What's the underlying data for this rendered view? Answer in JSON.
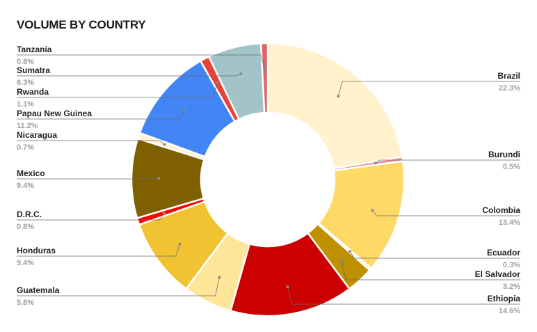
{
  "chart_data": {
    "type": "pie",
    "variant": "donut",
    "title": "VOLUME BY COUNTRY",
    "legend": "labels-outside",
    "slices": [
      {
        "name": "Brazil",
        "value": 22.3,
        "label": "22.3%",
        "color": "#FFF2CC",
        "side": "right"
      },
      {
        "name": "Burundi",
        "value": 0.5,
        "label": "0.5%",
        "color": "#E6949A",
        "side": "right"
      },
      {
        "name": "Colombia",
        "value": 13.4,
        "label": "13.4%",
        "color": "#FFD966",
        "side": "right"
      },
      {
        "name": "Ecuador",
        "value": 0.3,
        "label": "0.3%",
        "color": "#FFF2CC",
        "side": "right"
      },
      {
        "name": "El Salvador",
        "value": 3.2,
        "label": "3.2%",
        "color": "#BF9000",
        "side": "right"
      },
      {
        "name": "Ethiopia",
        "value": 14.6,
        "label": "14.6%",
        "color": "#CC0000",
        "side": "right"
      },
      {
        "name": "Guatemala",
        "value": 5.8,
        "label": "5.8%",
        "color": "#FFE599",
        "side": "left"
      },
      {
        "name": "Honduras",
        "value": 9.4,
        "label": "9.4%",
        "color": "#F1C232",
        "side": "left"
      },
      {
        "name": "D.R.C.",
        "value": 0.8,
        "label": "0.8%",
        "color": "#FF0000",
        "side": "left"
      },
      {
        "name": "Mexico",
        "value": 9.4,
        "label": "9.4%",
        "color": "#7F6000",
        "side": "left"
      },
      {
        "name": "Nicaragua",
        "value": 0.7,
        "label": "0.7%",
        "color": "#FFF2CC",
        "side": "left"
      },
      {
        "name": "Papau New Guinea",
        "value": 11.2,
        "label": "11.2%",
        "color": "#4285F4",
        "side": "left"
      },
      {
        "name": "Rwanda",
        "value": 1.1,
        "label": "1.1%",
        "color": "#EA4335",
        "side": "left"
      },
      {
        "name": "Sumatra",
        "value": 6.3,
        "label": "6.3%",
        "color": "#A2C4C9",
        "side": "left"
      },
      {
        "name": "Tanzania",
        "value": 0.8,
        "label": "0.8%",
        "color": "#E06666",
        "side": "left"
      }
    ]
  }
}
